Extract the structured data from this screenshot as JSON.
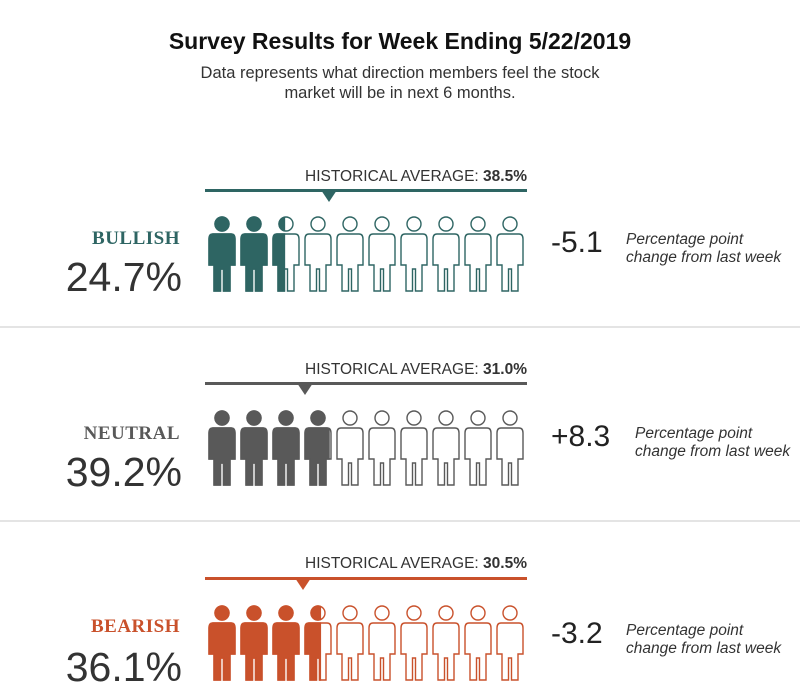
{
  "title": "Survey Results for Week Ending 5/22/2019",
  "subtitle": "Data represents what direction members feel the stock market will be in next 6 months.",
  "chart_data": {
    "type": "pictograph",
    "icons_per_row": 10,
    "categories": [
      {
        "label": "BULLISH",
        "value_text": "24.7%",
        "value": 24.7,
        "historical_prefix": "HISTORICAL AVERAGE:",
        "historical_text": "38.5%",
        "historical": 38.5,
        "change_text": "-5.1",
        "change": -5.1,
        "change_note": "Percentage point change from last week",
        "color": "#2e6563"
      },
      {
        "label": "NEUTRAL",
        "value_text": "39.2%",
        "value": 39.2,
        "historical_prefix": "HISTORICAL AVERAGE:",
        "historical_text": "31.0%",
        "historical": 31.0,
        "change_text": "+8.3",
        "change": 8.3,
        "change_note": "Percentage point change from last week",
        "color": "#595959"
      },
      {
        "label": "BEARISH",
        "value_text": "36.1%",
        "value": 36.1,
        "historical_prefix": "HISTORICAL AVERAGE:",
        "historical_text": "30.5%",
        "historical": 30.5,
        "change_text": "-3.2",
        "change": -3.2,
        "change_note": "Percentage point change from last week",
        "color": "#c9512b"
      }
    ]
  }
}
